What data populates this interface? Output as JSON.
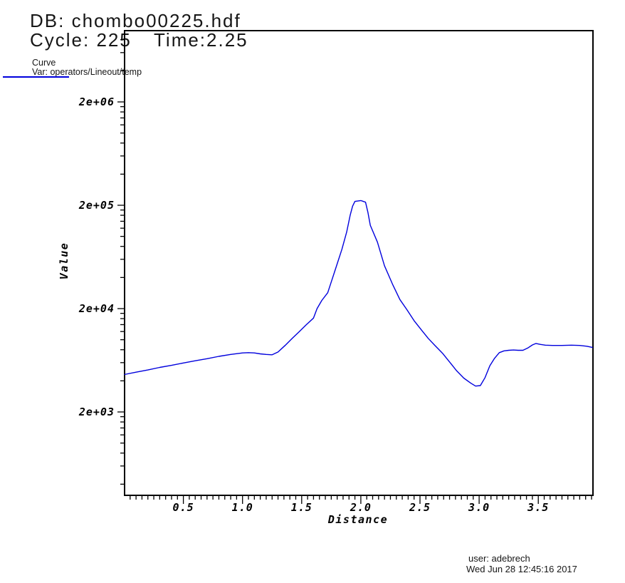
{
  "header": {
    "db": "DB: chombo00225.hdf",
    "cycle": "Cycle: 225",
    "time": "Time:2.25"
  },
  "legend": {
    "title": "Curve",
    "var_label": "Var: operators/Lineout/temp",
    "line_color": "#0000dd"
  },
  "footer": {
    "user": "user: adebrech",
    "date": "Wed Jun 28 12:45:16 2017"
  },
  "chart_data": {
    "type": "line",
    "title": "",
    "xlabel": "Distance",
    "ylabel": "Value",
    "x_scale": "linear",
    "y_scale": "log",
    "xlim": [
      0,
      3.96
    ],
    "ylim": [
      312,
      9800000
    ],
    "grid": false,
    "legend_position": "top-left",
    "axis_color": "#000000",
    "x_tick_values": [
      0.5,
      1.0,
      1.5,
      2.0,
      2.5,
      3.0,
      3.5
    ],
    "x_tick_labels": [
      "0.5",
      "1.0",
      "1.5",
      "2.0",
      "2.5",
      "3.0",
      "3.5"
    ],
    "x_minor_tick_step": 0.05,
    "y_tick_values": [
      2000000,
      200000,
      20000,
      2000
    ],
    "y_tick_labels": [
      "2e+06",
      "2e+05",
      "2e+04",
      "2e+03"
    ],
    "series": [
      {
        "name": "operators/Lineout/temp",
        "color": "#0000dd",
        "points": [
          [
            0.0,
            4600
          ],
          [
            0.1,
            4850
          ],
          [
            0.2,
            5100
          ],
          [
            0.3,
            5400
          ],
          [
            0.4,
            5650
          ],
          [
            0.5,
            5950
          ],
          [
            0.6,
            6250
          ],
          [
            0.7,
            6550
          ],
          [
            0.8,
            6900
          ],
          [
            0.9,
            7200
          ],
          [
            1.0,
            7450
          ],
          [
            1.05,
            7500
          ],
          [
            1.1,
            7450
          ],
          [
            1.15,
            7300
          ],
          [
            1.2,
            7200
          ],
          [
            1.25,
            7150
          ],
          [
            1.3,
            7600
          ],
          [
            1.36,
            8800
          ],
          [
            1.42,
            10300
          ],
          [
            1.48,
            12000
          ],
          [
            1.54,
            14000
          ],
          [
            1.6,
            16200
          ],
          [
            1.63,
            20000
          ],
          [
            1.67,
            24000
          ],
          [
            1.72,
            28500
          ],
          [
            1.78,
            46000
          ],
          [
            1.84,
            75000
          ],
          [
            1.88,
            110000
          ],
          [
            1.91,
            160000
          ],
          [
            1.93,
            196000
          ],
          [
            1.95,
            218000
          ],
          [
            2.0,
            222000
          ],
          [
            2.04,
            214000
          ],
          [
            2.06,
            170000
          ],
          [
            2.08,
            128000
          ],
          [
            2.14,
            88000
          ],
          [
            2.2,
            52000
          ],
          [
            2.27,
            34000
          ],
          [
            2.33,
            24500
          ],
          [
            2.39,
            19500
          ],
          [
            2.45,
            15300
          ],
          [
            2.51,
            12500
          ],
          [
            2.57,
            10300
          ],
          [
            2.63,
            8700
          ],
          [
            2.69,
            7400
          ],
          [
            2.75,
            6100
          ],
          [
            2.81,
            5000
          ],
          [
            2.87,
            4250
          ],
          [
            2.93,
            3790
          ],
          [
            2.97,
            3560
          ],
          [
            3.01,
            3600
          ],
          [
            3.05,
            4300
          ],
          [
            3.09,
            5600
          ],
          [
            3.13,
            6600
          ],
          [
            3.17,
            7500
          ],
          [
            3.21,
            7800
          ],
          [
            3.25,
            7900
          ],
          [
            3.29,
            7950
          ],
          [
            3.33,
            7900
          ],
          [
            3.37,
            7900
          ],
          [
            3.41,
            8300
          ],
          [
            3.45,
            8900
          ],
          [
            3.48,
            9200
          ],
          [
            3.52,
            9000
          ],
          [
            3.56,
            8850
          ],
          [
            3.62,
            8800
          ],
          [
            3.7,
            8800
          ],
          [
            3.78,
            8850
          ],
          [
            3.85,
            8800
          ],
          [
            3.91,
            8650
          ],
          [
            3.96,
            8400
          ]
        ]
      }
    ]
  }
}
